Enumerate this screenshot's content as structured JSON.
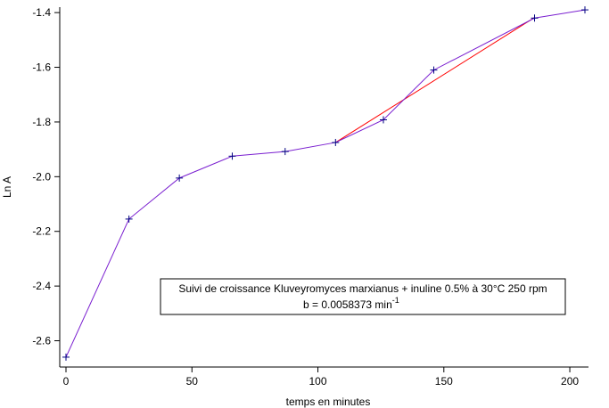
{
  "chart_data": {
    "type": "line",
    "xlabel": "temps en minutes",
    "ylabel": "Ln A",
    "xlim": [
      0,
      206
    ],
    "ylim": [
      -2.67,
      -1.38
    ],
    "xticks": [
      0,
      50,
      100,
      150,
      200
    ],
    "xtick_labels": [
      "0",
      "50",
      "100",
      "150",
      "200"
    ],
    "yticks": [
      -2.6,
      -2.4,
      -2.2,
      -2.0,
      -1.8,
      -1.6,
      -1.4
    ],
    "ytick_labels": [
      "-2.6",
      "-2.4",
      "-2.2",
      "-2.0",
      "-1.8",
      "-1.6",
      "-1.4"
    ],
    "grid": false,
    "colors": {
      "data_line": "#7a1fd0",
      "fit_line": "#ff0000",
      "markers": "#000080"
    },
    "series": [
      {
        "x": [
          0,
          25,
          45,
          66,
          87,
          107,
          126,
          146,
          186,
          206
        ],
        "y": [
          -2.66,
          -2.155,
          -2.005,
          -1.925,
          -1.908,
          -1.875,
          -1.792,
          -1.61,
          -1.42,
          -1.39
        ]
      }
    ],
    "fit_line": {
      "x": [
        107,
        186
      ],
      "y": [
        -1.875,
        -1.418
      ]
    },
    "annotation": {
      "line1": "Suivi de croissance Kluveyromyces marxianus + inuline 0.5% à 30°C 250 rpm",
      "line2": "b = 0.0058373  min",
      "line2_superscript": "-1"
    }
  }
}
